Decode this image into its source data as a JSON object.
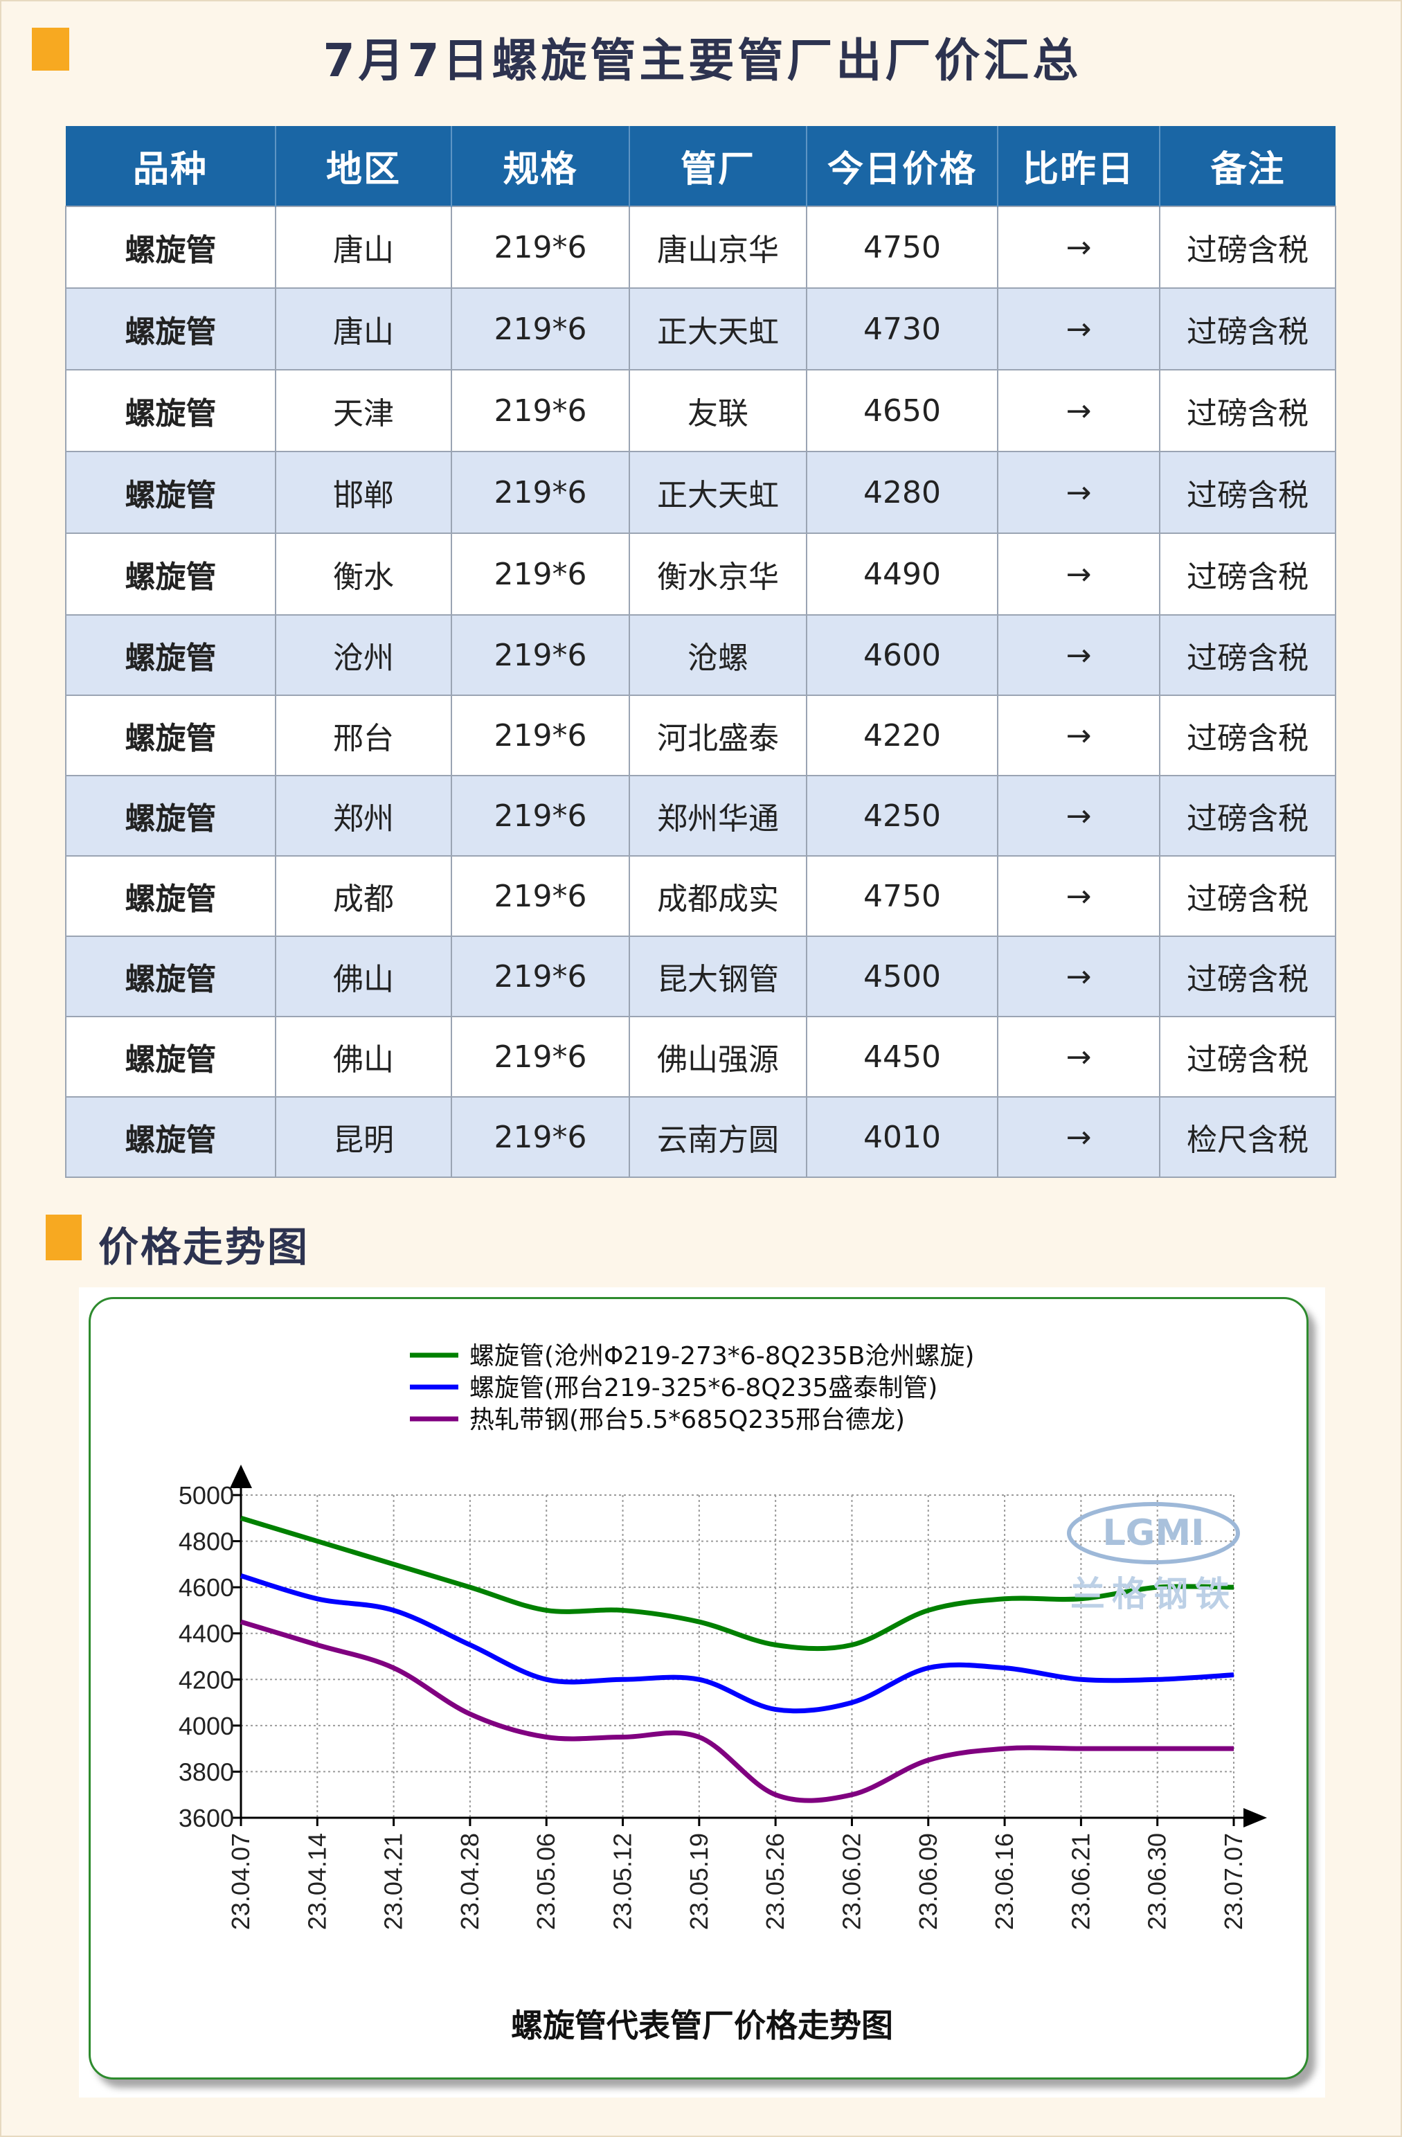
{
  "title": "7月7日螺旋管主要管厂出厂价汇总",
  "table": {
    "headers": [
      "品种",
      "地区",
      "规格",
      "管厂",
      "今日价格",
      "比昨日",
      "备注"
    ],
    "rows": [
      [
        "螺旋管",
        "唐山",
        "219*6",
        "唐山京华",
        "4750",
        "→",
        "过磅含税"
      ],
      [
        "螺旋管",
        "唐山",
        "219*6",
        "正大天虹",
        "4730",
        "→",
        "过磅含税"
      ],
      [
        "螺旋管",
        "天津",
        "219*6",
        "友联",
        "4650",
        "→",
        "过磅含税"
      ],
      [
        "螺旋管",
        "邯郸",
        "219*6",
        "正大天虹",
        "4280",
        "→",
        "过磅含税"
      ],
      [
        "螺旋管",
        "衡水",
        "219*6",
        "衡水京华",
        "4490",
        "→",
        "过磅含税"
      ],
      [
        "螺旋管",
        "沧州",
        "219*6",
        "沧螺",
        "4600",
        "→",
        "过磅含税"
      ],
      [
        "螺旋管",
        "邢台",
        "219*6",
        "河北盛泰",
        "4220",
        "→",
        "过磅含税"
      ],
      [
        "螺旋管",
        "郑州",
        "219*6",
        "郑州华通",
        "4250",
        "→",
        "过磅含税"
      ],
      [
        "螺旋管",
        "成都",
        "219*6",
        "成都成实",
        "4750",
        "→",
        "过磅含税"
      ],
      [
        "螺旋管",
        "佛山",
        "219*6",
        "昆大钢管",
        "4500",
        "→",
        "过磅含税"
      ],
      [
        "螺旋管",
        "佛山",
        "219*6",
        "佛山强源",
        "4450",
        "→",
        "过磅含税"
      ],
      [
        "螺旋管",
        "昆明",
        "219*6",
        "云南方圆",
        "4010",
        "→",
        "检尺含税"
      ]
    ]
  },
  "section_title": "价格走势图",
  "watermark": {
    "logo": "LGMI",
    "text": "兰格钢铁"
  },
  "colors": {
    "accent": "#f7a921",
    "header_bg": "#1a66a5",
    "row_alt": "#dae4f4",
    "series_green": "#008000",
    "series_blue": "#0000ff",
    "series_purple": "#800080"
  },
  "chart_data": {
    "type": "line",
    "title": "螺旋管代表管厂价格走势图",
    "xlabel": "",
    "ylabel": "",
    "ylim": [
      3600,
      5000
    ],
    "yticks": [
      5000,
      4800,
      4600,
      4400,
      4200,
      4000,
      3800,
      3600
    ],
    "grid": true,
    "legend_position": "top",
    "x": [
      "23.04.07",
      "23.04.14",
      "23.04.21",
      "23.04.28",
      "23.05.06",
      "23.05.12",
      "23.05.19",
      "23.05.26",
      "23.06.02",
      "23.06.09",
      "23.06.16",
      "23.06.21",
      "23.06.30",
      "23.07.07"
    ],
    "series": [
      {
        "name": "螺旋管(沧州Φ219-273*6-8Q235B沧州螺旋)",
        "color": "#008000",
        "values": [
          4900,
          4800,
          4700,
          4600,
          4500,
          4500,
          4450,
          4350,
          4350,
          4500,
          4550,
          4550,
          4600,
          4600
        ]
      },
      {
        "name": "螺旋管(邢台219-325*6-8Q235盛泰制管)",
        "color": "#0000ff",
        "values": [
          4650,
          4550,
          4500,
          4350,
          4200,
          4200,
          4200,
          4070,
          4100,
          4250,
          4250,
          4200,
          4200,
          4220
        ]
      },
      {
        "name": "热轧带钢(邢台5.5*685Q235邢台德龙)",
        "color": "#800080",
        "values": [
          4450,
          4350,
          4250,
          4050,
          3950,
          3950,
          3950,
          3700,
          3700,
          3850,
          3900,
          3900,
          3900,
          3900
        ]
      }
    ]
  }
}
